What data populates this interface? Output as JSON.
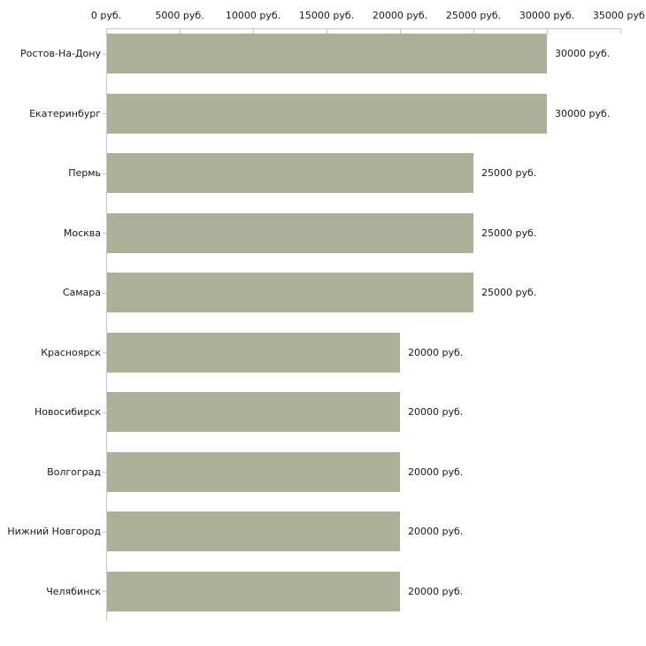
{
  "chart_data": {
    "type": "bar",
    "orientation": "horizontal",
    "title": "",
    "xlabel": "",
    "ylabel": "",
    "xlim": [
      0,
      35000
    ],
    "grid": false,
    "legend": false,
    "categories": [
      "Ростов-На-Дону",
      "Екатеринбург",
      "Пермь",
      "Москва",
      "Самара",
      "Красноярск",
      "Новосибирск",
      "Волгоград",
      "Нижний Новгород",
      "Челябинск"
    ],
    "values": [
      30000,
      30000,
      25000,
      25000,
      25000,
      20000,
      20000,
      20000,
      20000,
      20000
    ],
    "value_labels": [
      "30000 руб.",
      "30000 руб.",
      "25000 руб.",
      "25000 руб.",
      "25000 руб.",
      "20000 руб.",
      "20000 руб.",
      "20000 руб.",
      "20000 руб.",
      "20000 руб."
    ],
    "x_ticks": [
      0,
      5000,
      10000,
      15000,
      20000,
      25000,
      30000,
      35000
    ],
    "x_tick_labels": [
      "0 руб.",
      "5000 руб.",
      "10000 руб.",
      "15000 руб.",
      "20000 руб.",
      "25000 руб.",
      "30000 руб.",
      "35000 руб."
    ],
    "unit_suffix": " руб.",
    "bar_color": "#abb097",
    "axis_color": "#c6c6c6",
    "tick_color": "#cbc8b2",
    "text_color": "#1a1a1a",
    "background_color": "#ffffff"
  }
}
